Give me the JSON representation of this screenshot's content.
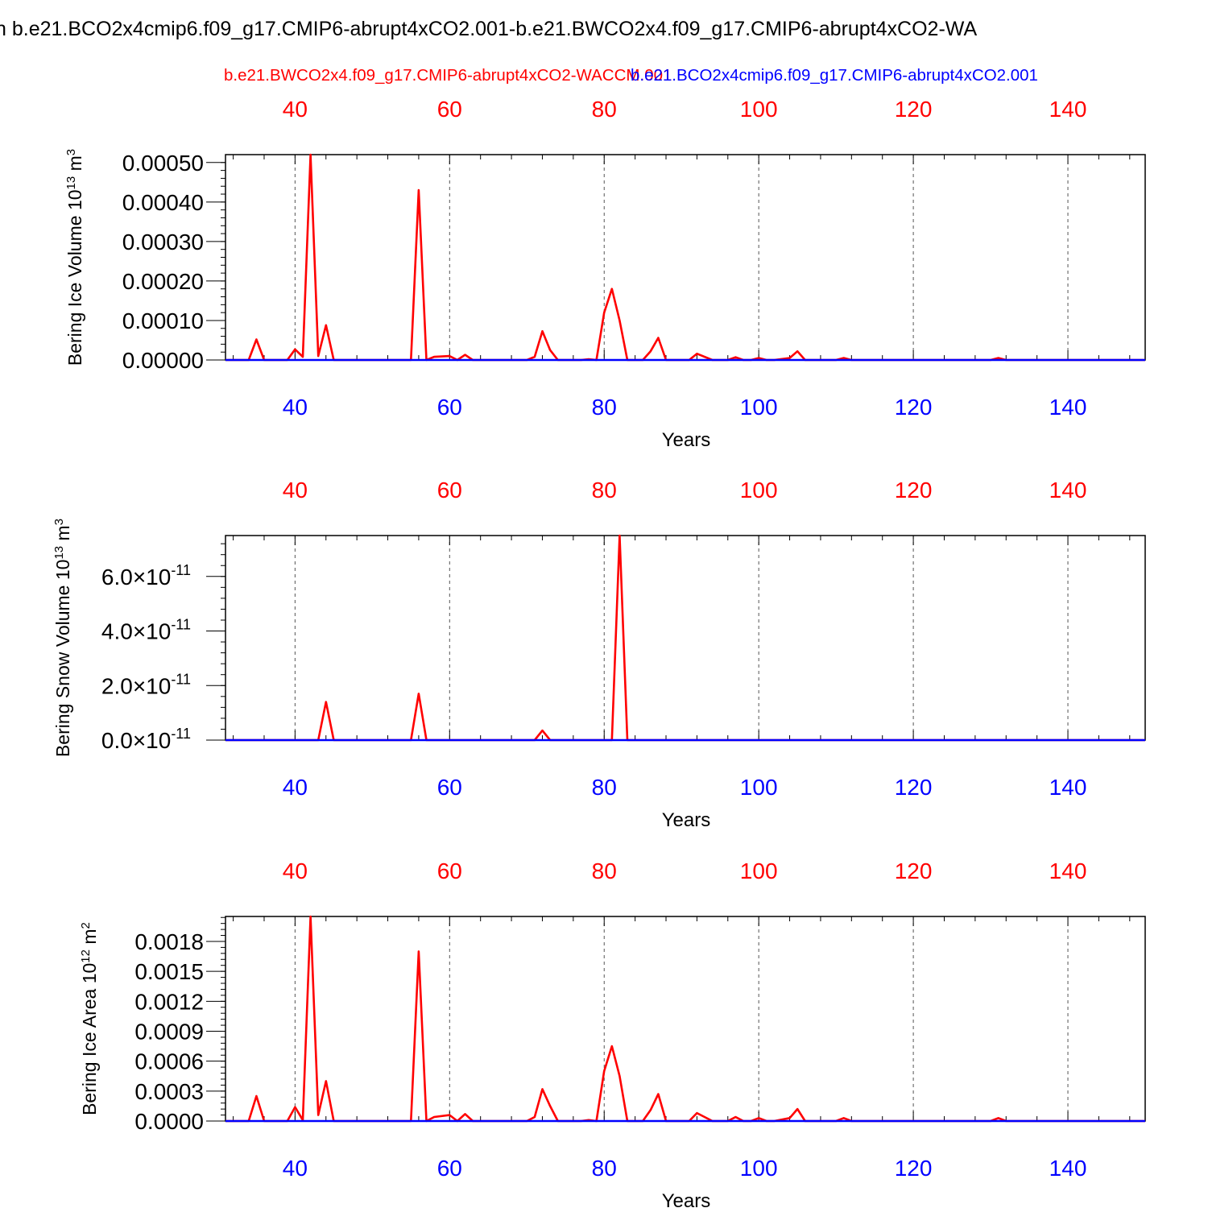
{
  "title": "n b.e21.BCO2x4cmip6.f09_g17.CMIP6-abrupt4xCO2.001-b.e21.BWCO2x4.f09_g17.CMIP6-abrupt4xCO2-WA",
  "legend": {
    "red_case": "b.e21.BWCO2x4.f09_g17.CMIP6-abrupt4xCO2-WACCM.001",
    "blue_case": "b.e21.BCO2x4cmip6.f09_g17.CMIP6-abrupt4xCO2.001"
  },
  "colors": {
    "red": "#ff0000",
    "blue": "#0000ff",
    "axis": "#000000",
    "grid": "#555555"
  },
  "chart_data": [
    {
      "type": "line",
      "ylabel": "Bering Ice Volume 10",
      "ylabel_exp": "13",
      "ylabel_unit": " m",
      "ylabel_unit_exp": "3",
      "xlabel": "Years",
      "xlim": [
        31,
        150
      ],
      "ylim": [
        0,
        0.00052
      ],
      "x_ticks": [
        40,
        60,
        80,
        100,
        120,
        140
      ],
      "y_ticks": [
        0.0,
        0.0001,
        0.0002,
        0.0003,
        0.0004,
        0.0005
      ],
      "y_tick_labels": [
        "0.00000",
        "0.00010",
        "0.00020",
        "0.00030",
        "0.00040",
        "0.00050"
      ],
      "series": [
        {
          "color": "#ff0000",
          "x": [
            31,
            34,
            35,
            36,
            39,
            40,
            41,
            42,
            43,
            44,
            45,
            55,
            56,
            57,
            58,
            60,
            61,
            62,
            63,
            70,
            71,
            72,
            73,
            74,
            77,
            78,
            79,
            80,
            81,
            82,
            83,
            85,
            86,
            87,
            88,
            91,
            92,
            94,
            96,
            97,
            98,
            99,
            100,
            101,
            102,
            104,
            105,
            106,
            110,
            111,
            112,
            130,
            131,
            132,
            150
          ],
          "y": [
            0,
            0,
            5.2e-05,
            0,
            0,
            2.7e-05,
            8e-06,
            0.00052,
            1e-05,
            8.8e-05,
            0,
            0,
            0.00043,
            0,
            8e-06,
            1e-05,
            0,
            1.3e-05,
            0,
            0,
            8e-06,
            7.3e-05,
            2.5e-05,
            0,
            0,
            2e-06,
            0,
            0.00012,
            0.00018,
            0.0001,
            0,
            0,
            2.2e-05,
            5.6e-05,
            0,
            0,
            1.6e-05,
            0,
            0,
            7e-06,
            0,
            0,
            5e-06,
            0,
            0,
            5e-06,
            2.2e-05,
            0,
            0,
            5e-06,
            0,
            0,
            5e-06,
            0,
            0
          ]
        },
        {
          "color": "#0000ff",
          "x": [
            31,
            150
          ],
          "y": [
            0,
            0
          ]
        }
      ]
    },
    {
      "type": "line",
      "ylabel": "Bering Snow Volume 10",
      "ylabel_exp": "13",
      "ylabel_unit": " m",
      "ylabel_unit_exp": "3",
      "xlabel": "Years",
      "xlim": [
        31,
        150
      ],
      "ylim": [
        0,
        7.5e-11
      ],
      "x_ticks": [
        40,
        60,
        80,
        100,
        120,
        140
      ],
      "y_ticks": [
        0,
        2e-11,
        4e-11,
        6e-11
      ],
      "y_tick_labels": [
        "0.0×10",
        "2.0×10",
        "4.0×10",
        "6.0×10"
      ],
      "y_tick_exp": "-11",
      "series": [
        {
          "color": "#ff0000",
          "x": [
            31,
            43,
            44,
            45,
            55,
            56,
            57,
            71,
            72,
            73,
            81,
            82,
            83,
            150
          ],
          "y": [
            0,
            0,
            1.4e-11,
            0,
            0,
            1.7e-11,
            0,
            0,
            3.5e-12,
            0,
            0,
            7.5e-11,
            0,
            0
          ]
        },
        {
          "color": "#0000ff",
          "x": [
            31,
            150
          ],
          "y": [
            0,
            0
          ]
        }
      ]
    },
    {
      "type": "line",
      "ylabel": "Bering Ice Area 10",
      "ylabel_exp": "12",
      "ylabel_unit": " m",
      "ylabel_unit_exp": "2",
      "xlabel": "Years",
      "xlim": [
        31,
        150
      ],
      "ylim": [
        0,
        0.00205
      ],
      "x_ticks": [
        40,
        60,
        80,
        100,
        120,
        140
      ],
      "y_ticks": [
        0.0,
        0.0003,
        0.0006,
        0.0009,
        0.0012,
        0.0015,
        0.0018
      ],
      "y_tick_labels": [
        "0.0000",
        "0.0003",
        "0.0006",
        "0.0009",
        "0.0012",
        "0.0015",
        "0.0018"
      ],
      "series": [
        {
          "color": "#ff0000",
          "x": [
            31,
            34,
            35,
            36,
            39,
            40,
            41,
            42,
            43,
            44,
            45,
            55,
            56,
            57,
            58,
            60,
            61,
            62,
            63,
            70,
            71,
            72,
            73,
            74,
            77,
            78,
            79,
            80,
            81,
            82,
            83,
            85,
            86,
            87,
            88,
            91,
            92,
            94,
            96,
            97,
            98,
            99,
            100,
            101,
            102,
            104,
            105,
            106,
            110,
            111,
            112,
            130,
            131,
            132,
            150
          ],
          "y": [
            0,
            0,
            0.00025,
            0,
            0,
            0.00014,
            1e-05,
            0.00205,
            6e-05,
            0.0004,
            0,
            0,
            0.0017,
            0,
            4e-05,
            6e-05,
            0,
            7e-05,
            0,
            0,
            4e-05,
            0.00032,
            0.00015,
            0,
            0,
            1e-05,
            0,
            0.0005,
            0.00075,
            0.00045,
            0,
            0,
            0.00011,
            0.00027,
            0,
            0,
            8e-05,
            0,
            0,
            4e-05,
            0,
            0,
            3e-05,
            0,
            0,
            3e-05,
            0.00012,
            0,
            0,
            3e-05,
            0,
            0,
            3e-05,
            0,
            0
          ]
        },
        {
          "color": "#0000ff",
          "x": [
            31,
            150
          ],
          "y": [
            0,
            0
          ]
        }
      ]
    }
  ]
}
